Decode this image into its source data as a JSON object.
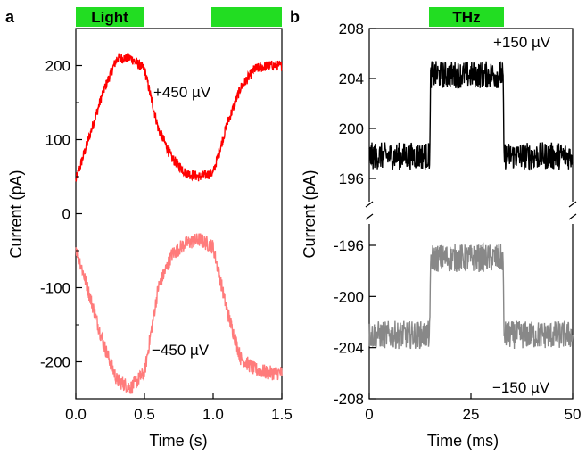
{
  "chart_data": [
    {
      "panel": "a",
      "type": "line",
      "xlabel": "Time (s)",
      "ylabel": "Current (pA)",
      "xlim": [
        0,
        1.5
      ],
      "ylim": [
        -250,
        250
      ],
      "x_ticks": [
        "0.0",
        "0.5",
        "1.0",
        "1.5"
      ],
      "y_ticks": [
        "200",
        "100",
        "0",
        "-100",
        "-200"
      ],
      "illumination_bar": {
        "label": "Light",
        "color": "#22dd22",
        "on_intervals": [
          [
            0,
            0.5
          ],
          [
            1.0,
            1.5
          ]
        ]
      },
      "series": [
        {
          "name": "+450 µV",
          "color": "#ff0000",
          "x": [
            0.0,
            0.1,
            0.2,
            0.3,
            0.4,
            0.5,
            0.6,
            0.7,
            0.8,
            0.9,
            1.0,
            1.1,
            1.2,
            1.3,
            1.4,
            1.5
          ],
          "values": [
            45,
            105,
            165,
            210,
            210,
            195,
            115,
            75,
            55,
            50,
            55,
            120,
            170,
            195,
            200,
            200
          ],
          "noise": 7
        },
        {
          "name": "−450 µV",
          "color": "#ff7b7b",
          "x": [
            0.0,
            0.1,
            0.2,
            0.3,
            0.4,
            0.5,
            0.6,
            0.7,
            0.8,
            0.9,
            1.0,
            1.1,
            1.2,
            1.3,
            1.4,
            1.5
          ],
          "values": [
            -45,
            -110,
            -175,
            -225,
            -235,
            -215,
            -100,
            -55,
            -40,
            -35,
            -45,
            -130,
            -195,
            -210,
            -215,
            -215
          ],
          "noise": 10
        }
      ]
    },
    {
      "panel": "b",
      "type": "line",
      "xlabel": "Time (ms)",
      "ylabel": "Current (pA)",
      "xlim": [
        0,
        50
      ],
      "broken_axis": true,
      "y_ticks_top": [
        "208",
        "204",
        "200",
        "196"
      ],
      "y_ticks_bottom": [
        "-196",
        "-200",
        "-204",
        "-208"
      ],
      "x_ticks": [
        "0",
        "25",
        "50"
      ],
      "illumination_bar": {
        "label": "THz",
        "color": "#22dd22",
        "on_interval": [
          15,
          33
        ]
      },
      "series": [
        {
          "name": "+150 µV",
          "color": "#000000",
          "ylim": [
            195,
            208
          ],
          "x": [
            0,
            14.9,
            15.1,
            32.9,
            33.1,
            50
          ],
          "values": [
            197.8,
            197.8,
            204.3,
            204.3,
            197.8,
            197.8
          ],
          "noise": 1.1
        },
        {
          "name": "−150 µV",
          "color": "#888888",
          "ylim": [
            -208,
            -195
          ],
          "x": [
            0,
            14.9,
            15.1,
            32.9,
            33.1,
            50
          ],
          "values": [
            -203.0,
            -203.0,
            -197.0,
            -197.0,
            -203.0,
            -203.0
          ],
          "noise": 1.1
        }
      ]
    }
  ],
  "labels": {
    "panel_a": "a",
    "panel_b": "b",
    "light": "Light",
    "thz": "THz",
    "a_plus": "+450 µV",
    "a_minus": "−450 µV",
    "b_plus": "+150 µV",
    "b_minus": "−150 µV"
  }
}
